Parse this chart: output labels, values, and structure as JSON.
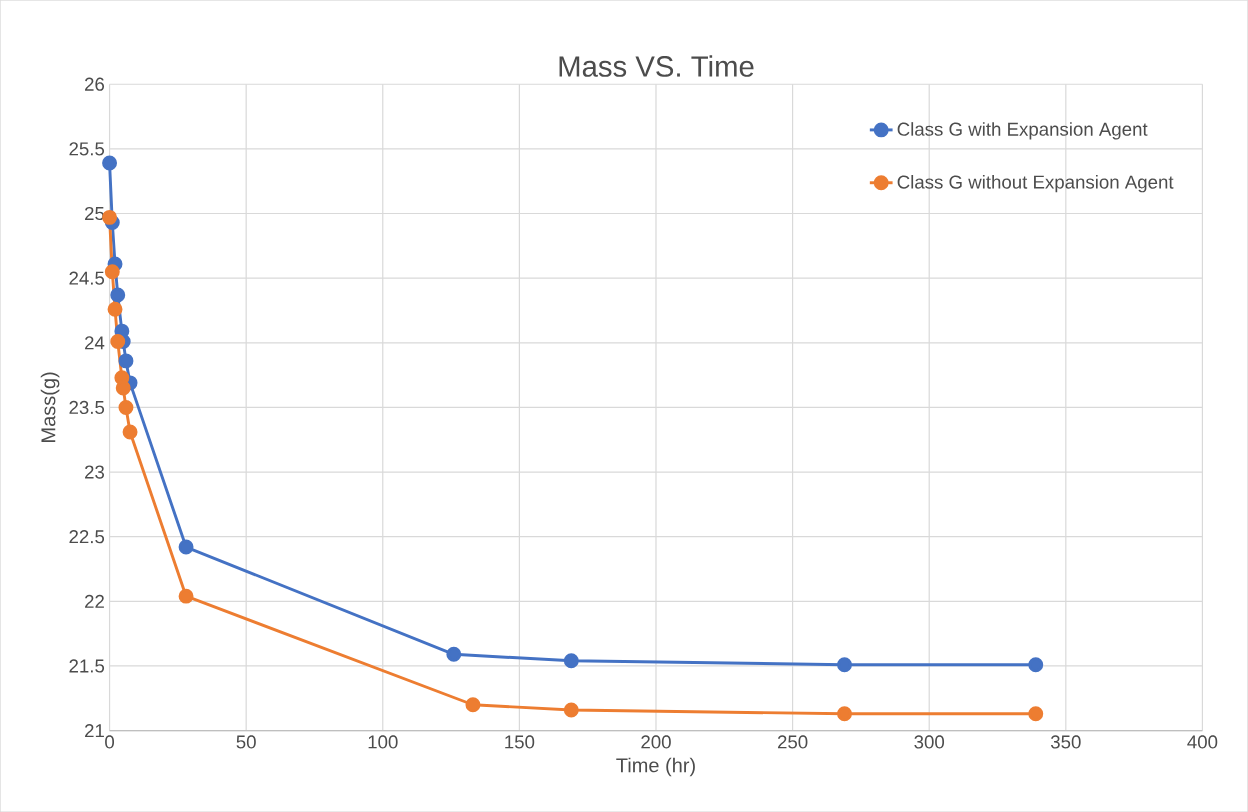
{
  "chart_data": {
    "type": "line",
    "title": "Mass VS. Time",
    "xlabel": "Time (hr)",
    "ylabel": "Mass(g)",
    "xlim": [
      0,
      400
    ],
    "xticks": [
      0,
      50,
      100,
      150,
      200,
      250,
      300,
      350,
      400
    ],
    "ylim": [
      21,
      26
    ],
    "yticks": [
      21,
      21.5,
      22,
      22.5,
      23,
      23.5,
      24,
      24.5,
      25,
      25.5,
      26
    ],
    "grid": true,
    "legend": "top right",
    "marker": "circle",
    "line_style": "solid",
    "series": [
      {
        "name": "Class G with Expansion Agent",
        "color": "#4472c4",
        "x": [
          0,
          1,
          2,
          3,
          4.5,
          5,
          6,
          7.5,
          28,
          126,
          169,
          269,
          339
        ],
        "values": [
          25.39,
          24.93,
          24.61,
          24.37,
          24.09,
          24.01,
          23.86,
          23.69,
          22.42,
          21.59,
          21.54,
          21.51,
          21.51
        ]
      },
      {
        "name": "Class G without Expansion Agent",
        "color": "#ed7d31",
        "x": [
          0,
          1,
          2,
          3,
          4.5,
          5,
          6,
          7.5,
          28,
          133,
          169,
          269,
          339
        ],
        "values": [
          24.97,
          24.55,
          24.26,
          24.01,
          23.73,
          23.65,
          23.5,
          23.31,
          22.04,
          21.2,
          21.16,
          21.13,
          21.13
        ]
      }
    ]
  }
}
